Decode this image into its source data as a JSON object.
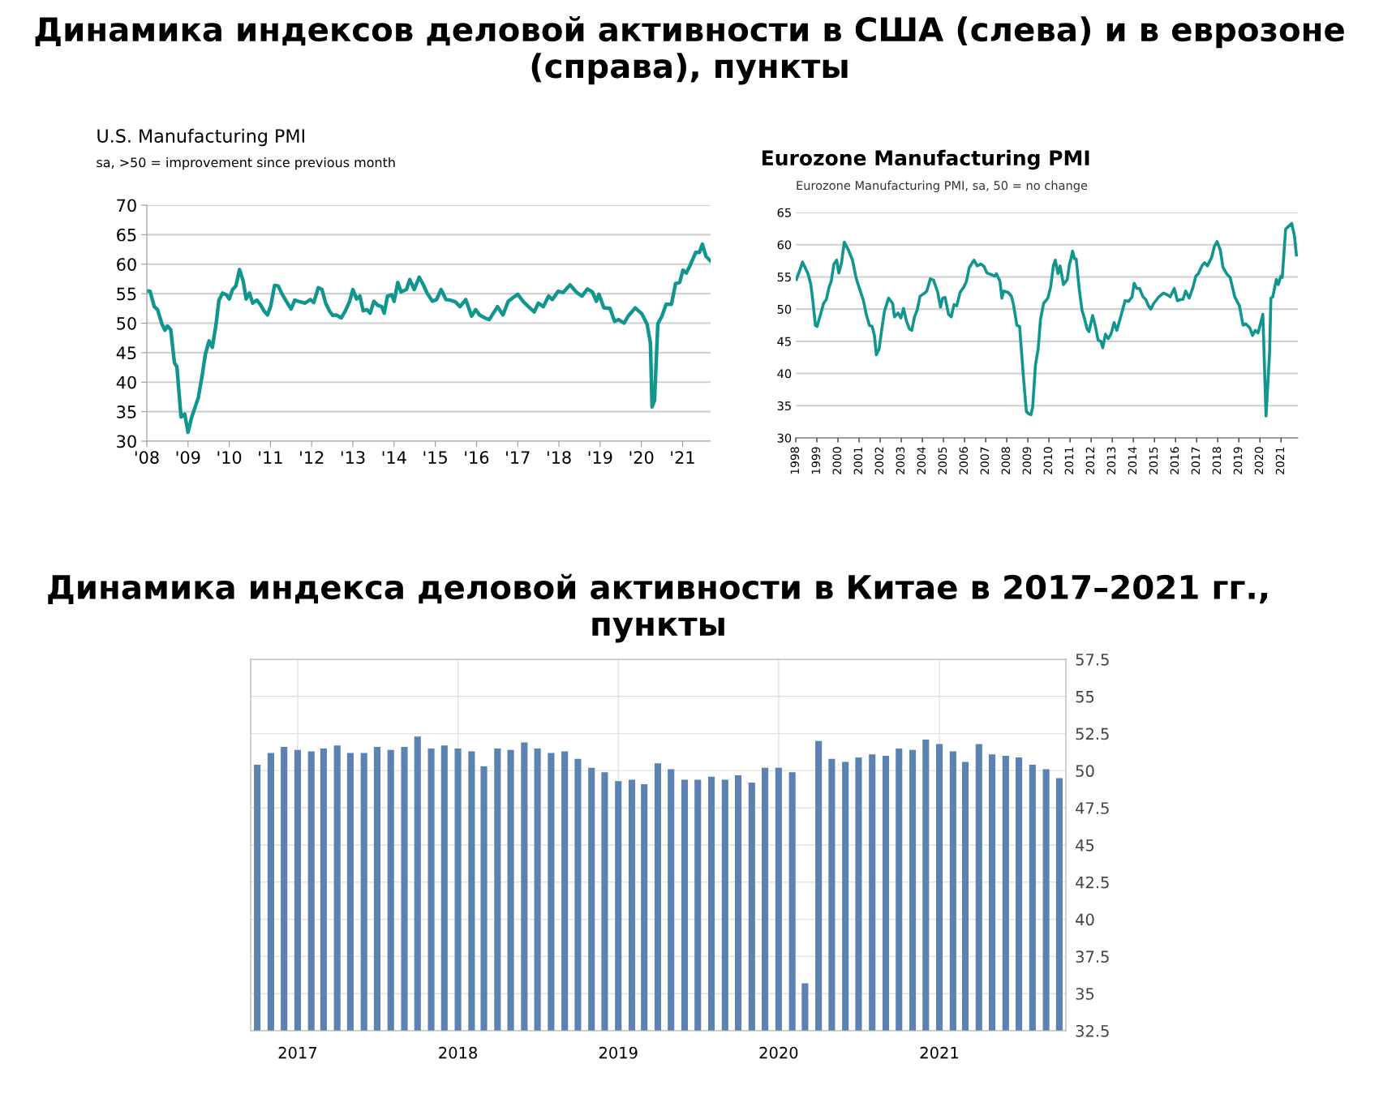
{
  "chart_data": [
    {
      "type": "line",
      "title": "U.S. Manufacturing PMI",
      "subtitle": "sa, >50 = improvement since previous month",
      "annotations": [
        "Динамика индексов деловой активности в США (слева) и в еврозоне (справа), пункты"
      ],
      "xlim": [
        2008,
        2021.68
      ],
      "ylim": [
        30,
        70
      ],
      "yticks": [
        30,
        35,
        40,
        45,
        50,
        55,
        60,
        65,
        70
      ],
      "xticks": [
        {
          "value": 2008,
          "label": "'08"
        },
        {
          "value": 2009,
          "label": "'09"
        },
        {
          "value": 2010,
          "label": "'10"
        },
        {
          "value": 2011,
          "label": "'11"
        },
        {
          "value": 2012,
          "label": "'12"
        },
        {
          "value": 2013,
          "label": "'13"
        },
        {
          "value": 2014,
          "label": "'14"
        },
        {
          "value": 2015,
          "label": "'15"
        },
        {
          "value": 2016,
          "label": "'16"
        },
        {
          "value": 2017,
          "label": "'17"
        },
        {
          "value": 2018,
          "label": "'18"
        },
        {
          "value": 2019,
          "label": "'19"
        },
        {
          "value": 2020,
          "label": "'20"
        },
        {
          "value": 2021,
          "label": "'21"
        }
      ],
      "grid": "y",
      "marker": "none",
      "line_style": "solid",
      "series": [
        {
          "color": "#11968f",
          "x": [
            2008.0,
            2008.08,
            2008.18,
            2008.26,
            2008.37,
            2008.44,
            2008.5,
            2008.58,
            2008.67,
            2008.73,
            2008.83,
            2008.92,
            2009.0,
            2009.09,
            2009.16,
            2009.25,
            2009.34,
            2009.42,
            2009.51,
            2009.59,
            2009.68,
            2009.75,
            2009.84,
            2009.93,
            2010.0,
            2010.08,
            2010.16,
            2010.25,
            2010.34,
            2010.41,
            2010.49,
            2010.57,
            2010.67,
            2010.75,
            2010.84,
            2010.93,
            2011.01,
            2011.1,
            2011.19,
            2011.27,
            2011.35,
            2011.43,
            2011.5,
            2011.59,
            2011.68,
            2011.84,
            2011.97,
            2012.05,
            2012.16,
            2012.25,
            2012.34,
            2012.43,
            2012.51,
            2012.59,
            2012.72,
            2012.82,
            2012.92,
            2013.0,
            2013.09,
            2013.17,
            2013.25,
            2013.34,
            2013.42,
            2013.51,
            2013.61,
            2013.7,
            2013.76,
            2013.84,
            2013.94,
            2014.0,
            2014.09,
            2014.17,
            2014.3,
            2014.38,
            2014.49,
            2014.61,
            2014.71,
            2014.8,
            2014.93,
            2015.03,
            2015.14,
            2015.26,
            2015.36,
            2015.49,
            2015.6,
            2015.74,
            2015.88,
            2015.98,
            2016.07,
            2016.2,
            2016.31,
            2016.51,
            2016.64,
            2016.77,
            2016.9,
            2017.0,
            2017.13,
            2017.26,
            2017.4,
            2017.5,
            2017.62,
            2017.75,
            2017.84,
            2017.98,
            2018.1,
            2018.27,
            2018.43,
            2018.56,
            2018.69,
            2018.81,
            2018.91,
            2018.97,
            2019.09,
            2019.24,
            2019.35,
            2019.45,
            2019.58,
            2019.68,
            2019.85,
            2020.01,
            2020.14,
            2020.22,
            2020.26,
            2020.32,
            2020.4,
            2020.5,
            2020.6,
            2020.73,
            2020.83,
            2020.93,
            2021.01,
            2021.09,
            2021.19,
            2021.32,
            2021.41,
            2021.48,
            2021.57,
            2021.67
          ],
          "values": [
            55.5,
            55.4,
            52.8,
            52.3,
            49.8,
            48.8,
            49.5,
            48.9,
            43.3,
            42.6,
            34.1,
            34.6,
            31.5,
            34.1,
            35.5,
            37.4,
            41.0,
            44.7,
            47.0,
            45.9,
            49.8,
            53.9,
            55.1,
            54.8,
            54.1,
            55.7,
            56.3,
            59.1,
            57.1,
            54.1,
            55.1,
            53.4,
            53.9,
            53.2,
            52.1,
            51.4,
            53.0,
            56.4,
            56.3,
            55.1,
            54.1,
            53.2,
            52.4,
            53.9,
            53.7,
            53.4,
            54.0,
            53.5,
            56.0,
            55.7,
            53.4,
            52.1,
            51.3,
            51.4,
            50.9,
            52.1,
            53.7,
            55.7,
            54.1,
            54.6,
            52.1,
            52.3,
            51.7,
            53.7,
            53.0,
            52.8,
            51.7,
            54.6,
            54.8,
            53.7,
            56.9,
            55.3,
            55.7,
            57.4,
            55.7,
            57.8,
            56.5,
            55.1,
            53.7,
            54.0,
            55.7,
            54.0,
            53.9,
            53.6,
            52.8,
            54.0,
            51.2,
            52.3,
            51.4,
            50.9,
            50.6,
            52.8,
            51.4,
            53.7,
            54.4,
            54.9,
            53.7,
            52.8,
            51.9,
            53.4,
            52.8,
            54.6,
            54.0,
            55.4,
            55.2,
            56.5,
            55.2,
            54.6,
            55.8,
            55.3,
            53.7,
            54.9,
            52.6,
            52.5,
            50.3,
            50.6,
            50.0,
            51.2,
            52.6,
            51.6,
            49.8,
            46.6,
            35.8,
            36.9,
            49.9,
            51.2,
            53.2,
            53.2,
            56.7,
            56.9,
            59.0,
            58.5,
            59.9,
            62.0,
            62.0,
            63.4,
            61.3,
            60.6
          ]
        }
      ]
    },
    {
      "type": "line",
      "title": "Eurozone Manufacturing PMI",
      "subtitle": "Eurozone Manufacturing PMI, sa, 50 = no change",
      "xlim": [
        1998,
        2021.8
      ],
      "ylim": [
        30,
        65
      ],
      "yticks": [
        30,
        35,
        40,
        45,
        50,
        55,
        60,
        65
      ],
      "xticks": [
        {
          "value": 1998,
          "label": "1998"
        },
        {
          "value": 1999,
          "label": "1999"
        },
        {
          "value": 2000,
          "label": "2000"
        },
        {
          "value": 2001,
          "label": "2001"
        },
        {
          "value": 2002,
          "label": "2002"
        },
        {
          "value": 2003,
          "label": "2003"
        },
        {
          "value": 2004,
          "label": "2004"
        },
        {
          "value": 2005,
          "label": "2005"
        },
        {
          "value": 2006,
          "label": "2006"
        },
        {
          "value": 2007,
          "label": "2007"
        },
        {
          "value": 2008,
          "label": "2008"
        },
        {
          "value": 2009,
          "label": "2009"
        },
        {
          "value": 2010,
          "label": "2010"
        },
        {
          "value": 2011,
          "label": "2011"
        },
        {
          "value": 2012,
          "label": "2012"
        },
        {
          "value": 2013,
          "label": "2013"
        },
        {
          "value": 2014,
          "label": "2014"
        },
        {
          "value": 2015,
          "label": "2015"
        },
        {
          "value": 2016,
          "label": "2016"
        },
        {
          "value": 2017,
          "label": "2017"
        },
        {
          "value": 2018,
          "label": "2018"
        },
        {
          "value": 2019,
          "label": "2019"
        },
        {
          "value": 2020,
          "label": "2020"
        },
        {
          "value": 2021,
          "label": "2021"
        }
      ],
      "grid": "y",
      "marker": "none",
      "line_style": "solid",
      "series": [
        {
          "color": "#11968f",
          "x": [
            1998.03,
            1998.19,
            1998.32,
            1998.45,
            1998.58,
            1998.71,
            1998.81,
            1998.93,
            1999.01,
            1999.16,
            1999.32,
            1999.45,
            1999.58,
            1999.68,
            1999.81,
            1999.94,
            2000.04,
            2000.17,
            2000.3,
            2000.48,
            2000.69,
            2000.87,
            2001.04,
            2001.21,
            2001.34,
            2001.49,
            2001.62,
            2001.73,
            2001.82,
            2001.95,
            2002.07,
            2002.2,
            2002.4,
            2002.59,
            2002.68,
            2002.85,
            2002.98,
            2003.11,
            2003.24,
            2003.39,
            2003.5,
            2003.63,
            2003.76,
            2003.89,
            2004.08,
            2004.21,
            2004.38,
            2004.53,
            2004.73,
            2004.86,
            2004.96,
            2005.08,
            2005.24,
            2005.37,
            2005.5,
            2005.63,
            2005.79,
            2005.96,
            2006.09,
            2006.22,
            2006.45,
            2006.6,
            2006.77,
            2006.93,
            2007.06,
            2007.31,
            2007.42,
            2007.51,
            2007.68,
            2007.77,
            2007.86,
            2008.06,
            2008.22,
            2008.32,
            2008.48,
            2008.61,
            2008.8,
            2008.93,
            2009.06,
            2009.15,
            2009.23,
            2009.36,
            2009.49,
            2009.6,
            2009.75,
            2009.95,
            2010.08,
            2010.21,
            2010.3,
            2010.43,
            2010.53,
            2010.69,
            2010.87,
            2010.97,
            2011.03,
            2011.12,
            2011.21,
            2011.29,
            2011.44,
            2011.57,
            2011.68,
            2011.81,
            2011.9,
            2012.07,
            2012.19,
            2012.33,
            2012.46,
            2012.55,
            2012.68,
            2012.81,
            2012.94,
            2013.09,
            2013.22,
            2013.35,
            2013.61,
            2013.78,
            2013.94,
            2014.04,
            2014.17,
            2014.3,
            2014.46,
            2014.59,
            2014.72,
            2014.83,
            2014.97,
            2015.21,
            2015.43,
            2015.62,
            2015.75,
            2015.94,
            2016.09,
            2016.26,
            2016.35,
            2016.48,
            2016.65,
            2016.83,
            2016.96,
            2017.08,
            2017.25,
            2017.38,
            2017.51,
            2017.71,
            2017.84,
            2017.97,
            2018.12,
            2018.25,
            2018.42,
            2018.59,
            2018.81,
            2019.03,
            2019.2,
            2019.33,
            2019.52,
            2019.65,
            2019.78,
            2019.91,
            2020.01,
            2020.14,
            2020.29,
            2020.46,
            2020.52,
            2020.61,
            2020.78,
            2020.87,
            2020.99,
            2021.06,
            2021.22,
            2021.38,
            2021.51,
            2021.64,
            2021.73
          ],
          "values": [
            54.6,
            56.0,
            57.3,
            56.4,
            55.5,
            53.9,
            51.3,
            47.5,
            47.3,
            49.0,
            50.9,
            51.5,
            53.4,
            54.3,
            57.0,
            57.6,
            55.6,
            57.2,
            60.4,
            59.3,
            57.6,
            54.7,
            53.0,
            51.3,
            49.2,
            47.5,
            47.3,
            45.9,
            42.9,
            43.8,
            46.7,
            49.6,
            51.7,
            50.9,
            48.8,
            49.4,
            48.6,
            50.1,
            48.2,
            46.9,
            46.7,
            48.8,
            49.9,
            52.0,
            52.4,
            52.8,
            54.7,
            54.5,
            52.6,
            50.3,
            51.7,
            51.8,
            49.2,
            48.8,
            50.7,
            50.5,
            52.6,
            53.4,
            54.3,
            56.4,
            57.6,
            56.7,
            57.0,
            56.6,
            55.6,
            55.3,
            55.1,
            55.5,
            54.3,
            51.7,
            52.8,
            52.6,
            52.0,
            50.7,
            47.5,
            47.3,
            39.1,
            34.1,
            33.7,
            33.6,
            34.8,
            41.3,
            43.8,
            48.4,
            50.9,
            51.7,
            53.4,
            56.7,
            57.6,
            55.5,
            56.7,
            53.8,
            54.6,
            56.9,
            57.6,
            59.0,
            57.8,
            57.8,
            53.0,
            49.8,
            48.6,
            46.9,
            46.5,
            49.0,
            47.5,
            45.2,
            45.0,
            44.0,
            46.1,
            45.4,
            46.1,
            47.9,
            46.7,
            48.2,
            51.3,
            51.2,
            51.9,
            54.0,
            53.2,
            53.2,
            51.9,
            51.5,
            50.5,
            50.0,
            50.9,
            51.9,
            52.5,
            52.2,
            51.9,
            53.2,
            51.3,
            51.5,
            51.5,
            52.8,
            51.7,
            53.4,
            55.1,
            55.5,
            56.7,
            57.2,
            56.7,
            58.0,
            59.7,
            60.5,
            59.2,
            56.5,
            55.5,
            54.9,
            51.9,
            50.5,
            47.5,
            47.7,
            47.1,
            45.9,
            46.7,
            46.3,
            47.5,
            49.2,
            33.4,
            43.3,
            51.7,
            51.9,
            54.6,
            53.8,
            55.1,
            54.9,
            62.4,
            62.9,
            63.3,
            61.3,
            58.4
          ]
        }
      ]
    },
    {
      "type": "bar",
      "title": "Динамика индекса деловой активности в Китае в 2017–2021 гг., пункты",
      "xlim": [
        "2016-09-16",
        "2021-10-16"
      ],
      "ylim": [
        32.5,
        57.5
      ],
      "yticks": [
        32.5,
        35,
        37.5,
        40,
        42.5,
        45,
        47.5,
        50,
        52.5,
        55,
        57.5
      ],
      "xticks": [
        {
          "value": "2017-01",
          "label": "2017"
        },
        {
          "value": "2018-01",
          "label": "2018"
        },
        {
          "value": "2019-01",
          "label": "2019"
        },
        {
          "value": "2020-01",
          "label": "2020"
        },
        {
          "value": "2021-01",
          "label": "2021"
        }
      ],
      "grid": true,
      "x": [
        "2016-10",
        "2016-11",
        "2016-12",
        "2017-01",
        "2017-02",
        "2017-03",
        "2017-04",
        "2017-05",
        "2017-06",
        "2017-07",
        "2017-08",
        "2017-09",
        "2017-10",
        "2017-11",
        "2017-12",
        "2018-01",
        "2018-02",
        "2018-03",
        "2018-04",
        "2018-05",
        "2018-06",
        "2018-07",
        "2018-08",
        "2018-09",
        "2018-10",
        "2018-11",
        "2018-12",
        "2019-01",
        "2019-02",
        "2019-03",
        "2019-04",
        "2019-05",
        "2019-06",
        "2019-07",
        "2019-08",
        "2019-09",
        "2019-10",
        "2019-11",
        "2019-12",
        "2020-01",
        "2020-02",
        "2020-03",
        "2020-04",
        "2020-05",
        "2020-06",
        "2020-07",
        "2020-08",
        "2020-09",
        "2020-10",
        "2020-11",
        "2020-12",
        "2021-01",
        "2021-02",
        "2021-03",
        "2021-04",
        "2021-05",
        "2021-06",
        "2021-07",
        "2021-08",
        "2021-09",
        "2021-10"
      ],
      "series": [
        {
          "color": "#5b82b0",
          "values": [
            50.4,
            51.2,
            51.6,
            51.4,
            51.3,
            51.5,
            51.7,
            51.2,
            51.2,
            51.6,
            51.4,
            51.6,
            52.3,
            51.5,
            51.7,
            51.5,
            51.3,
            50.3,
            51.5,
            51.4,
            51.9,
            51.5,
            51.2,
            51.3,
            50.8,
            50.2,
            49.9,
            49.3,
            49.4,
            49.1,
            50.5,
            50.1,
            49.4,
            49.4,
            49.6,
            49.4,
            49.7,
            49.2,
            50.2,
            50.2,
            49.9,
            35.7,
            52.0,
            50.8,
            50.6,
            50.9,
            51.1,
            51.0,
            51.5,
            51.4,
            52.1,
            51.8,
            51.3,
            50.6,
            51.8,
            51.1,
            51.0,
            50.9,
            50.4,
            50.1,
            49.5
          ]
        }
      ]
    }
  ]
}
